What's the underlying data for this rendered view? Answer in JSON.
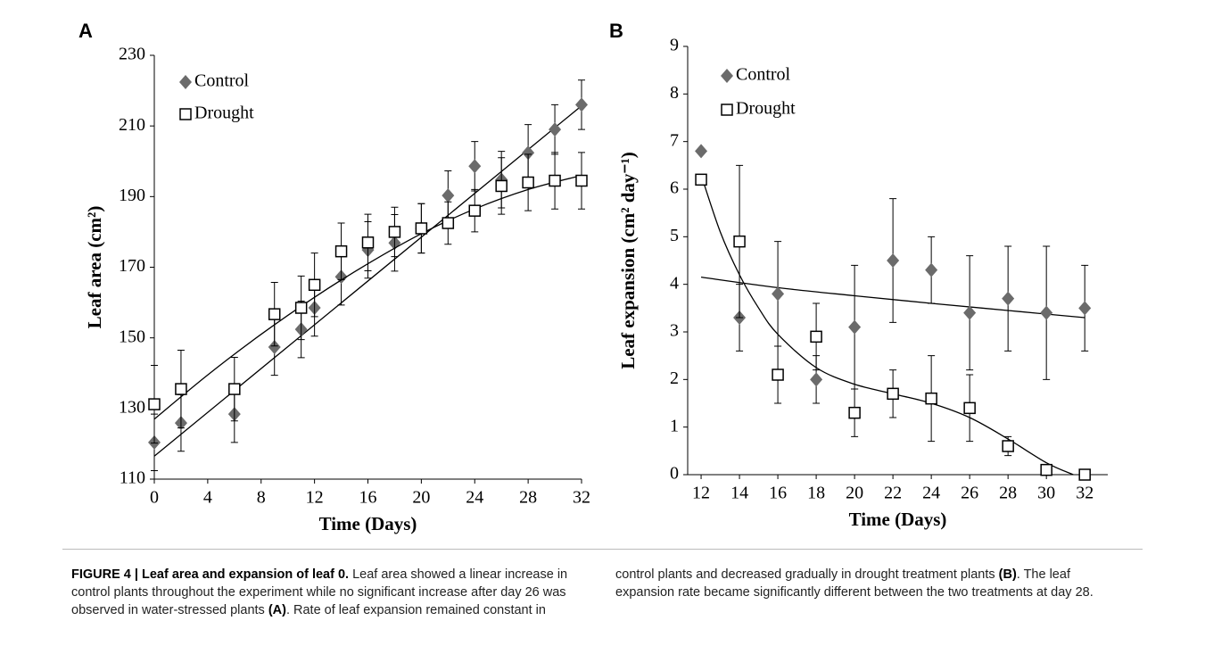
{
  "charts": [
    {
      "panel": "A",
      "type": "scatter",
      "xlabel": "Time (Days)",
      "ylabel": "Leaf area (cm²)",
      "xlim": [
        0,
        32
      ],
      "xticks": [
        0,
        4,
        8,
        12,
        16,
        20,
        24,
        28,
        32
      ],
      "ylim": [
        110,
        230
      ],
      "yticks": [
        110,
        130,
        150,
        170,
        190,
        210,
        230
      ],
      "x": [
        0,
        2,
        6,
        9,
        11,
        12,
        14,
        16,
        18,
        20,
        22,
        24,
        26,
        28,
        30,
        32
      ],
      "series": [
        {
          "name": "Control",
          "marker": "diamond",
          "color": "#6b6b6b",
          "values": [
            120.4,
            125.9,
            128.4,
            147.4,
            152.4,
            158.5,
            167.3,
            174.9,
            176.9,
            181,
            190.3,
            198.6,
            194.8,
            202.4,
            209,
            216
          ],
          "errors": [
            8,
            8,
            8,
            8,
            8,
            8,
            8,
            8,
            8,
            7,
            7,
            7,
            8,
            8,
            7,
            7
          ],
          "trend": {
            "x": [
              0,
              32
            ],
            "values": [
              116.5,
              215.7
            ]
          }
        },
        {
          "name": "Drought",
          "marker": "square",
          "color": "#000000",
          "values": [
            131.2,
            135.5,
            135.5,
            156.7,
            158.5,
            165,
            174.5,
            177,
            180,
            181,
            182.5,
            186,
            193,
            194,
            194.5,
            194.5
          ],
          "errors": [
            11,
            11,
            9,
            9,
            9,
            9,
            8,
            8,
            7,
            7,
            6,
            6,
            8,
            8,
            8,
            8
          ],
          "trend": {
            "x": [
              0,
              4,
              8,
              12,
              16,
              20,
              24,
              28,
              32
            ],
            "values": [
              127,
              139.5,
              151,
              161.5,
              171,
              179.5,
              186.5,
              192,
              196
            ]
          }
        }
      ]
    },
    {
      "panel": "B",
      "type": "scatter",
      "xlabel": "Time (Days)",
      "ylabel": "Leaf expansion (cm² day⁻¹)",
      "xlim": [
        11.3,
        33.2
      ],
      "xticks": [
        12,
        14,
        16,
        18,
        20,
        22,
        24,
        26,
        28,
        30,
        32
      ],
      "ylim": [
        0,
        9
      ],
      "yticks": [
        0,
        1,
        2,
        3,
        4,
        5,
        6,
        7,
        8,
        9
      ],
      "x": [
        12,
        14,
        16,
        18,
        20,
        22,
        24,
        26,
        28,
        30,
        32
      ],
      "series": [
        {
          "name": "Control",
          "marker": "diamond",
          "color": "#6b6b6b",
          "values": [
            6.8,
            3.3,
            3.8,
            2.0,
            3.1,
            4.5,
            4.3,
            3.4,
            3.7,
            3.4,
            3.5
          ],
          "errors": [
            0,
            0.7,
            1.1,
            0.5,
            1.3,
            1.3,
            0.7,
            1.2,
            1.1,
            1.4,
            0.9
          ],
          "trend": {
            "x": [
              12,
              16,
              20,
              24,
              28,
              32
            ],
            "values": [
              4.15,
              3.93,
              3.76,
              3.6,
              3.45,
              3.3
            ]
          }
        },
        {
          "name": "Drought",
          "marker": "square",
          "color": "#000000",
          "values": [
            6.2,
            4.9,
            2.1,
            2.9,
            1.3,
            1.7,
            1.6,
            1.4,
            0.6,
            0.1,
            0
          ],
          "errors": [
            0,
            1.6,
            0.6,
            0.7,
            0.5,
            0.5,
            0.9,
            0.7,
            0.2,
            0.1,
            0
          ],
          "trend": {
            "x": [
              12,
              13,
              14,
              15,
              16,
              18,
              20,
              22,
              24,
              26,
              28,
              30,
              31.4
            ],
            "values": [
              6.3,
              5.1,
              4.2,
              3.5,
              2.95,
              2.25,
              1.9,
              1.7,
              1.5,
              1.2,
              0.75,
              0.25,
              0
            ]
          }
        }
      ]
    }
  ],
  "caption": {
    "heading": "FIGURE 4 | Leaf area and expansion of leaf 0.",
    "part1": " Leaf area showed a linear increase in control plants throughout the experiment while no significant increase after day 26 was observed in water-stressed plants ",
    "refA": "(A)",
    "part2": ". Rate of leaf expansion remained constant in control plants and decreased gradually in drought treatment plants ",
    "refB": "(B)",
    "part3": ". The leaf expansion rate became significantly different between the two treatments at day 28."
  }
}
